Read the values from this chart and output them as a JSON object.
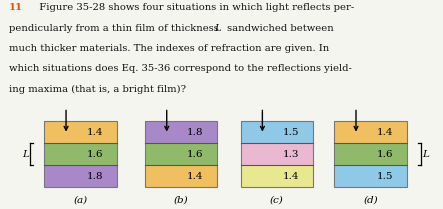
{
  "text_line1_num": "11",
  "text_line1_rest": "  Figure 35-28 shows four situations in which light reflects per-",
  "text_line2": "pendicularly from a thin film of thickness ",
  "text_line2_L": "L",
  "text_line2_rest": " sandwiched between",
  "text_line3": "much thicker materials. The indexes of refraction are given. In",
  "text_line4": "which situations does Eq. 35-36 correspond to the reflections yield-",
  "text_line5": "ing maxima (that is, a bright film)?",
  "situations": [
    {
      "label": "(a)",
      "top_color": "#F0C060",
      "mid_color": "#90BA6A",
      "bot_color": "#A888C8",
      "top_n": "1.4",
      "mid_n": "1.6",
      "bot_n": "1.8"
    },
    {
      "label": "(b)",
      "top_color": "#A888C8",
      "mid_color": "#90BA6A",
      "bot_color": "#F0C060",
      "top_n": "1.8",
      "mid_n": "1.6",
      "bot_n": "1.4"
    },
    {
      "label": "(c)",
      "top_color": "#90C8E8",
      "mid_color": "#EAB8D0",
      "bot_color": "#E8E890",
      "top_n": "1.5",
      "mid_n": "1.3",
      "bot_n": "1.4"
    },
    {
      "label": "(d)",
      "top_color": "#F0C060",
      "mid_color": "#90BA6A",
      "bot_color": "#90C8E8",
      "top_n": "1.4",
      "mid_n": "1.6",
      "bot_n": "1.5"
    }
  ],
  "bg_color": "#F5F5F0",
  "header_color": "#E05010",
  "text_color": "#111111",
  "body_fontsize": 7.2,
  "n_fontsize": 7.5,
  "label_fontsize": 7.5
}
